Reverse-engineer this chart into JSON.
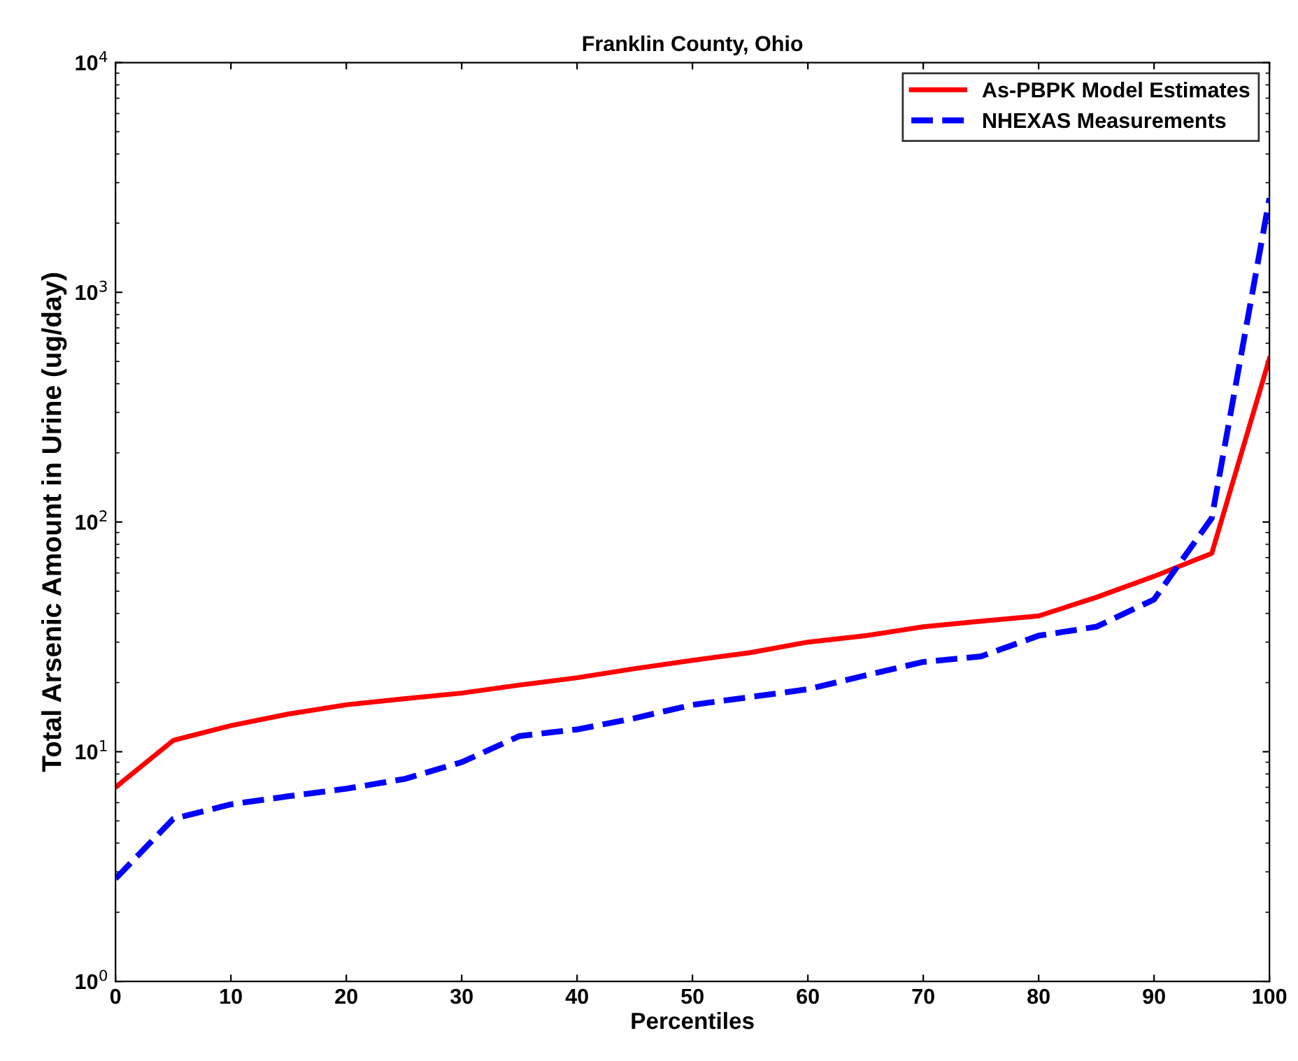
{
  "chart_data": {
    "type": "line",
    "title": "Franklin County, Ohio",
    "xlabel": "Percentiles",
    "ylabel": "Total Arsenic Amount in Urine (ug/day)",
    "x": [
      0,
      5,
      10,
      15,
      20,
      25,
      30,
      35,
      40,
      45,
      50,
      55,
      60,
      65,
      70,
      75,
      80,
      85,
      90,
      95,
      100
    ],
    "series": [
      {
        "name": "As-PBPK Model Estimates",
        "color": "#ff0000",
        "line_style": "solid",
        "values": [
          7,
          11.2,
          13,
          14.6,
          16,
          17,
          18,
          19.5,
          21,
          23,
          25,
          27,
          30,
          32,
          35,
          37,
          39,
          47,
          58,
          73,
          515
        ]
      },
      {
        "name": "NHEXAS Measurements",
        "color": "#0000ff",
        "line_style": "dashed",
        "values": [
          2.8,
          5.1,
          5.9,
          6.4,
          6.9,
          7.6,
          9.0,
          11.7,
          12.5,
          14,
          16,
          17.3,
          18.7,
          21.5,
          24.6,
          26,
          32,
          35,
          46,
          104,
          2570
        ]
      }
    ],
    "log": "y",
    "xlim": [
      0,
      100
    ],
    "xticks": [
      0,
      10,
      20,
      30,
      40,
      50,
      60,
      70,
      80,
      90,
      100
    ],
    "ylim": [
      1,
      10000
    ],
    "yticks": [
      {
        "value": 1,
        "label": "10$^{0}$"
      },
      {
        "value": 10,
        "label": "10$^{1}$"
      },
      {
        "value": 100,
        "label": "10$^{2}$"
      },
      {
        "value": 1000,
        "label": "10$^{3}$"
      },
      {
        "value": 10000,
        "label": "10$^{4}$"
      }
    ],
    "grid": false,
    "legend": "top right"
  }
}
